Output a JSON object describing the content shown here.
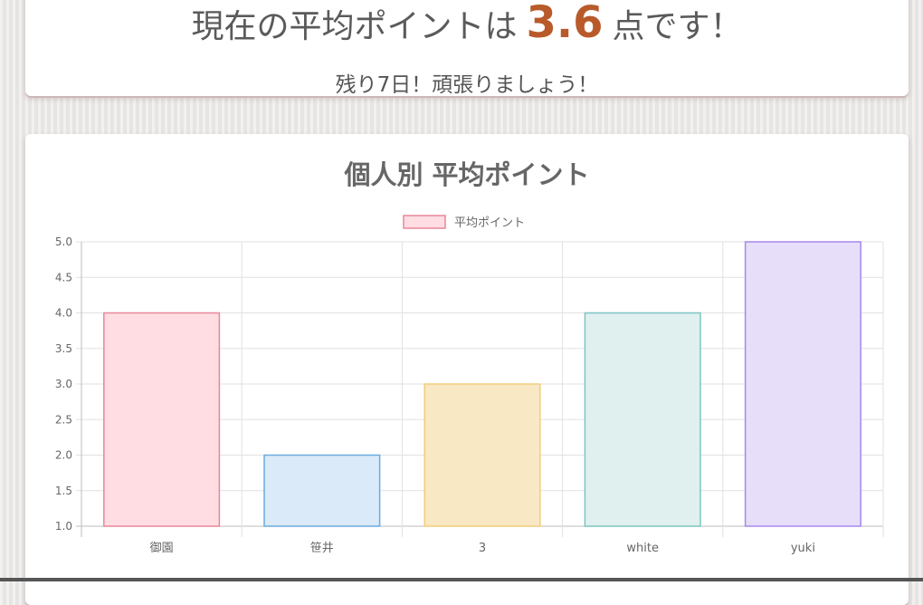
{
  "summary": {
    "prefix": "現在の平均ポイントは",
    "average": "3.6",
    "suffix": "点です！",
    "message": "残り7日！頑張りましょう！"
  },
  "chart_data": {
    "type": "bar",
    "title": "個人別 平均ポイント",
    "categories": [
      "御園",
      "笹井",
      "3",
      "white",
      "yuki"
    ],
    "series": [
      {
        "name": "平均ポイント",
        "values": [
          4.0,
          2.0,
          3.0,
          4.0,
          5.0
        ]
      }
    ],
    "ylim": [
      1.0,
      5.0
    ],
    "yticks": [
      "5.0",
      "4.5",
      "4.0",
      "3.5",
      "3.0",
      "2.5",
      "2.0",
      "1.5",
      "1.0"
    ],
    "grid": true,
    "legend_position": "top",
    "colors": {
      "fills": [
        "#ffdde3",
        "#dbeaf8",
        "#f9e8c4",
        "#dff0ef",
        "#e7defa"
      ],
      "strokes": [
        "#e8879a",
        "#6aabdf",
        "#f2cd7c",
        "#7dc4c1",
        "#a888ec"
      ]
    }
  }
}
